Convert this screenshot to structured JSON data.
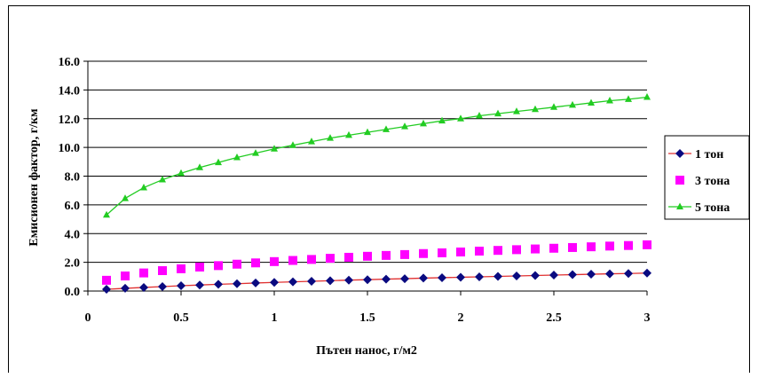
{
  "chart_data": {
    "type": "line",
    "xlabel": "Пътен нанос, г/м2",
    "ylabel": "Емисионен фактор, г/км",
    "xlim": [
      0,
      3
    ],
    "ylim": [
      0,
      16
    ],
    "x_ticks": [
      "0",
      "0.5",
      "1",
      "1.5",
      "2",
      "2.5",
      "3"
    ],
    "y_ticks": [
      "0.0",
      "2.0",
      "4.0",
      "6.0",
      "8.0",
      "10.0",
      "12.0",
      "14.0",
      "16.0"
    ],
    "grid": "horizontal",
    "legend_position": "right",
    "x": [
      0.1,
      0.2,
      0.3,
      0.4,
      0.5,
      0.6,
      0.7,
      0.8,
      0.9,
      1.0,
      1.1,
      1.2,
      1.3,
      1.4,
      1.5,
      1.6,
      1.7,
      1.8,
      1.9,
      2.0,
      2.1,
      2.2,
      2.3,
      2.4,
      2.5,
      2.6,
      2.7,
      2.8,
      2.9,
      3.0
    ],
    "series": [
      {
        "name": "1 тон",
        "color": "#0a0a80",
        "line_color": "#e03030",
        "marker": "diamond",
        "values": [
          0.12,
          0.19,
          0.25,
          0.31,
          0.37,
          0.42,
          0.47,
          0.51,
          0.56,
          0.6,
          0.64,
          0.68,
          0.72,
          0.76,
          0.79,
          0.83,
          0.86,
          0.9,
          0.93,
          0.96,
          0.99,
          1.02,
          1.05,
          1.08,
          1.11,
          1.14,
          1.17,
          1.2,
          1.22,
          1.25
        ]
      },
      {
        "name": "3 тона",
        "color": "#ff00ff",
        "line_color": "none",
        "marker": "square",
        "values": [
          0.75,
          1.05,
          1.26,
          1.42,
          1.55,
          1.67,
          1.77,
          1.87,
          1.96,
          2.05,
          2.13,
          2.2,
          2.28,
          2.35,
          2.42,
          2.48,
          2.54,
          2.61,
          2.66,
          2.72,
          2.78,
          2.83,
          2.88,
          2.93,
          2.98,
          3.03,
          3.08,
          3.13,
          3.17,
          3.22
        ]
      },
      {
        "name": "5 тона",
        "color": "#22cc22",
        "line_color": "#22cc22",
        "marker": "triangle",
        "values": [
          5.3,
          6.45,
          7.2,
          7.75,
          8.2,
          8.6,
          8.95,
          9.3,
          9.6,
          9.9,
          10.15,
          10.4,
          10.65,
          10.85,
          11.05,
          11.25,
          11.45,
          11.65,
          11.85,
          12.0,
          12.2,
          12.35,
          12.5,
          12.65,
          12.8,
          12.95,
          13.1,
          13.25,
          13.35,
          13.5
        ]
      }
    ]
  }
}
